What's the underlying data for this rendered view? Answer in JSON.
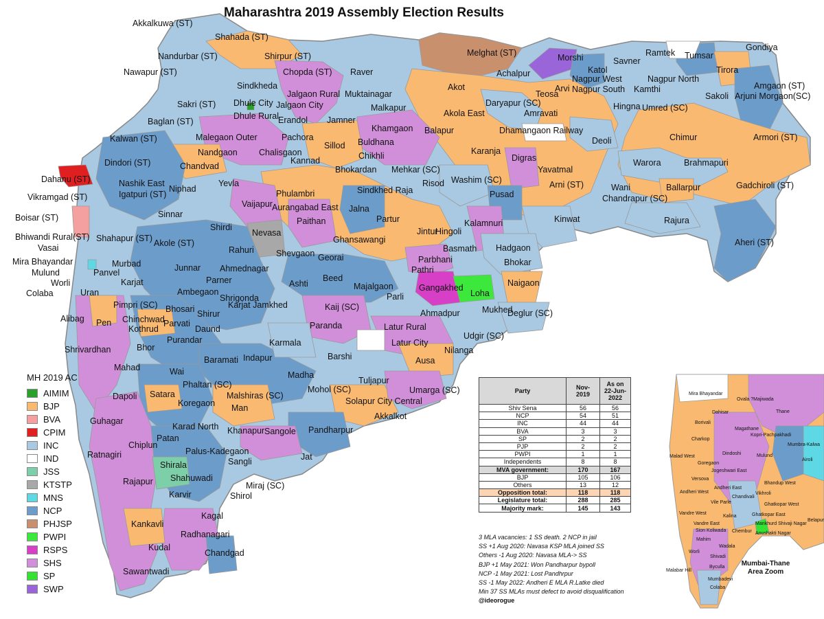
{
  "title": "Maharashtra 2019 Assembly Election Results",
  "colors": {
    "AIMIM": "#2ca02c",
    "BJP": "#f9b970",
    "BVA": "#f4a0a0",
    "CPIM": "#e02020",
    "INC": "#a9c9e2",
    "IND": "#ffffff",
    "JSS": "#7ccfa8",
    "KTSTP": "#a8a8a8",
    "MNS": "#5fd8e6",
    "NCP": "#6c9cc9",
    "PHJSP": "#c9906e",
    "PWPI": "#3de83d",
    "RSPS": "#d63fc6",
    "SHS": "#d08fd8",
    "SP": "#33e233",
    "SWP": "#9965d8"
  },
  "legend": {
    "title": "MH 2019 AC",
    "items": [
      {
        "label": "AIMIM",
        "color": "#2ca02c"
      },
      {
        "label": "BJP",
        "color": "#f9b970"
      },
      {
        "label": "BVA",
        "color": "#f4a0a0"
      },
      {
        "label": "CPIM",
        "color": "#e02020"
      },
      {
        "label": "INC",
        "color": "#a9c9e2"
      },
      {
        "label": "IND",
        "color": "#ffffff"
      },
      {
        "label": "JSS",
        "color": "#7ccfa8"
      },
      {
        "label": "KTSTP",
        "color": "#a8a8a8"
      },
      {
        "label": "MNS",
        "color": "#5fd8e6"
      },
      {
        "label": "NCP",
        "color": "#6c9cc9"
      },
      {
        "label": "PHJSP",
        "color": "#c9906e"
      },
      {
        "label": "PWPI",
        "color": "#3de83d"
      },
      {
        "label": "RSPS",
        "color": "#d63fc6"
      },
      {
        "label": "SHS",
        "color": "#d08fd8"
      },
      {
        "label": "SP",
        "color": "#33e233"
      },
      {
        "label": "SWP",
        "color": "#9965d8"
      }
    ]
  },
  "table": {
    "headers": [
      "Party",
      "Nov-2019",
      "As on 22-Jun-2022"
    ],
    "rows": [
      [
        "Shiv Sena",
        "56",
        "56"
      ],
      [
        "NCP",
        "54",
        "51"
      ],
      [
        "INC",
        "44",
        "44"
      ],
      [
        "BVA",
        "3",
        "3"
      ],
      [
        "SP",
        "2",
        "2"
      ],
      [
        "PJP",
        "2",
        "2"
      ],
      [
        "PWPI",
        "1",
        "1"
      ],
      [
        "Independents",
        "8",
        "8"
      ],
      [
        "MVA government:",
        "170",
        "167"
      ],
      [
        "BJP",
        "105",
        "106"
      ],
      [
        "Others",
        "13",
        "12"
      ],
      [
        "Opposition total:",
        "118",
        "118"
      ],
      [
        "Legislature total:",
        "288",
        "285"
      ],
      [
        "Majority mark:",
        "145",
        "143"
      ]
    ]
  },
  "notes": [
    "3 MLA vacancies: 1 SS death. 2 NCP in jail",
    "SS +1 Aug 2020: Navasa KSP MLA joined SS",
    "Others -1 Aug 2020: Navasa MLA-> SS",
    "BJP +1 May 2021: Won Pandharpur bypoll",
    "NCP -1 May 2021: Lost Pandhrpur",
    "SS -1 May 2022: Andheri E MLA R.Latke died",
    "Min 37 SS MLAs must defect to avoid disqualification"
  ],
  "credit": "@ideorogue",
  "inset_title": "Mumbai-Thane Area Zoom",
  "constituencies": [
    "Akkalkuwa (ST)",
    "Shahada (ST)",
    "Shirpur (ST)",
    "Nandurbar (ST)",
    "Nawapur (ST)",
    "Chopda (ST)",
    "Raver",
    "Melghat (ST)",
    "Morshi",
    "Ramtek",
    "Tumsar",
    "Gondiya",
    "Achalpur",
    "Katol",
    "Savner",
    "Tirora",
    "Sindkheda",
    "Jalgaon Rural",
    "Muktainagar",
    "Nagpur West",
    "Nagpur North",
    "Amgaon (ST)",
    "Nagpur South",
    "Arjuni Morgaon(SC)",
    "Sakri (ST)",
    "Jalgaon City",
    "Akot",
    "Arvi",
    "Kamthi",
    "Sakoli",
    "Dhule City",
    "Teosa",
    "Hingna",
    "Dhule Rural",
    "Malkapur",
    "Daryapur (SC)",
    "Umred (SC)",
    "Amravati",
    "Erandol",
    "Jamner",
    "Akola East",
    "Baglan (ST)",
    "Khamgaon",
    "Balapur",
    "Dhamangaon Railway",
    "Chimur",
    "Armori (ST)",
    "Malegaon Outer",
    "Pachora",
    "Kalwan (ST)",
    "Buldhana",
    "Deoli",
    "Sillod",
    "Karanja",
    "Nandgaon",
    "Chalisgaon",
    "Chikhli",
    "Dindori (ST)",
    "Kannad",
    "Digras",
    "Warora",
    "Brahmapuri",
    "Chandvad",
    "Bhokardan",
    "Mehkar (SC)",
    "Yavatmal",
    "Nashik East",
    "Risod",
    "Washim (SC)",
    "Dahanu (ST)",
    "Niphad",
    "Yevla",
    "Wani",
    "Gadchiroli (ST)",
    "Igatpuri (ST)",
    "Arni (ST)",
    "Sindkhed Raja",
    "Phulambri",
    "Ballarpur",
    "Vikramgad (ST)",
    "Aurangabad East",
    "Pusad",
    "Chandrapur (SC)",
    "Jalna",
    "Vaijapur",
    "Boisar (ST)",
    "Sinnar",
    "Paithan",
    "Partur",
    "Rajura",
    "Kinwat",
    "Shirdi",
    "Hingoli",
    "Jintur",
    "Kalamnuri",
    "Bhiwandi Rural(ST)",
    "Nevasa",
    "Ghansawangi",
    "Shahapur (ST)",
    "Akole (ST)",
    "Vasai",
    "Basmath",
    "Hadgaon",
    "Rahuri",
    "Aheri (ST)",
    "Mira Bhayandar",
    "Shevgaon",
    "Georai",
    "Parbhani",
    "Bhokar",
    "Murbad",
    "Mulund",
    "Pathri",
    "Ahmednagar",
    "Panvel",
    "Junnar",
    "Worli",
    "Beed",
    "Parner",
    "Naigaon",
    "Loha",
    "Colaba",
    "Uran",
    "Majalgaon",
    "Gangakhed",
    "Ashti",
    "Ambegaon",
    "Karjat",
    "Shrigonda",
    "Parli",
    "Pimpri (SC)",
    "Mukhed",
    "Alibag",
    "Kaij (SC)",
    "Ahmadpur",
    "Bhosari",
    "Deglur (SC)",
    "Chinchwad",
    "Shirur",
    "Parvati",
    "Karjat Jamkhed",
    "Pen",
    "Daund",
    "Latur Rural",
    "Paranda",
    "Kothrud",
    "Udgir (SC)",
    "Purandar",
    "Karmala",
    "Latur City",
    "Shrivardhan",
    "Bhor",
    "Nilanga",
    "Barshi",
    "Baramati",
    "Indapur",
    "Ausa",
    "Wai",
    "Mahad",
    "Madha",
    "Tuljapur",
    "Phaltan (SC)",
    "Satara",
    "Mohol (SC)",
    "Umarga (SC)",
    "Dapoli",
    "Malshiras (SC)",
    "Solapur City Central",
    "Man",
    "Koregaon",
    "Akkalkot",
    "Guhagar",
    "Karad North",
    "Khanapur",
    "Sangole",
    "Pandharpur",
    "Patan",
    "Chiplun",
    "Palus-Kadegaon",
    "Ratnagiri",
    "Jat",
    "Shirala",
    "Rajapur",
    "Shahuwadi",
    "Sangli",
    "Miraj (SC)",
    "Karvir",
    "Shirol",
    "Kagal",
    "Kankavli",
    "Radhanagari",
    "Kudal",
    "Chandgad",
    "Sawantwadi"
  ],
  "inset_constituencies": [
    "Mira Bhayandar",
    "Ovala ?Majiwada",
    "Dahisar",
    "Thane",
    "Borivali",
    "Magathane",
    "Kopri-Pachpakhadi",
    "Charkop",
    "Mumbra-Kalwa",
    "Dindoshi",
    "Malad West",
    "Mulund",
    "Goregaon",
    "Jogeshwari East",
    "Airoli",
    "Versova",
    "Andheri East",
    "Bhandup West",
    "Andheri West",
    "Chandivali",
    "Vikhroli",
    "Vile Parle",
    "Ghatkopar West",
    "Vandre West",
    "Kalina",
    "Ghatkopar East",
    "Vandre East",
    "Mankhurd Shivaji Nagar",
    "Sion Koliwada",
    "Chembur",
    "Anushakti Nagar",
    "Belapur",
    "Mahim",
    "Wadala",
    "Worli",
    "Shivadi",
    "Byculla",
    "Malabar Hill",
    "Mumbadevi",
    "Colaba"
  ]
}
